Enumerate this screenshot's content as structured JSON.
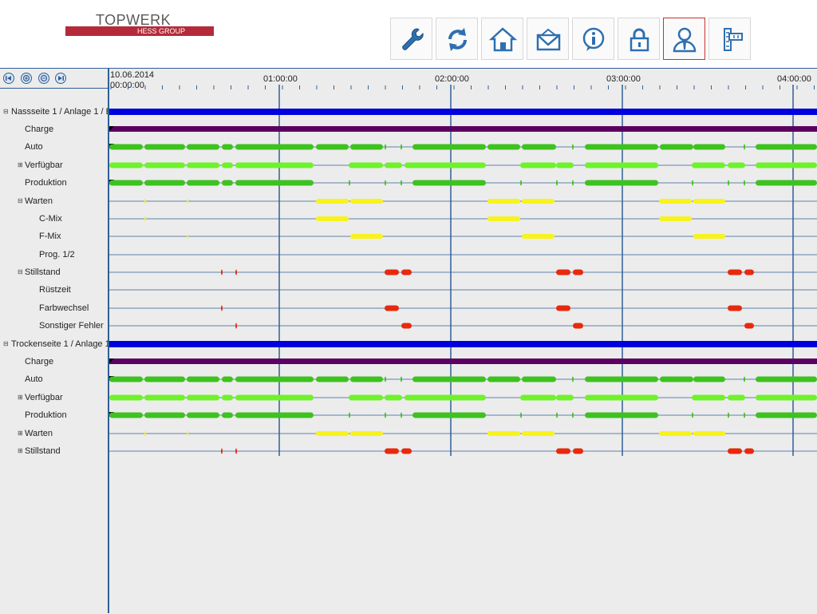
{
  "header": {
    "logo_word": "TOPWERK",
    "logo_group": "HESS GROUP",
    "toolbar": [
      {
        "icon": "wrench-icon"
      },
      {
        "icon": "refresh-icon"
      },
      {
        "icon": "home-icon"
      },
      {
        "icon": "mail-icon"
      },
      {
        "icon": "info-icon"
      },
      {
        "icon": "lock-icon"
      },
      {
        "icon": "user-icon",
        "active": true
      },
      {
        "icon": "ruler-icon"
      }
    ]
  },
  "nav": [
    "first-icon",
    "zoom-in-icon",
    "zoom-out-icon",
    "last-icon"
  ],
  "timeline": {
    "date": "10.06.2014",
    "start": "00:00:00",
    "hours": [
      "01:00:00",
      "02:00:00",
      "03:00:00",
      "04:00:00"
    ]
  },
  "rows": [
    {
      "label": "Nassseite 1 / Anlage 1 / E",
      "indent": 0,
      "expander": "-"
    },
    {
      "label": "Charge",
      "indent": 1
    },
    {
      "label": "Auto",
      "indent": 1
    },
    {
      "label": "Verfügbar",
      "indent": 1,
      "expander": "+"
    },
    {
      "label": "Produktion",
      "indent": 1
    },
    {
      "label": "Warten",
      "indent": 1,
      "expander": "-"
    },
    {
      "label": "C-Mix",
      "indent": 2
    },
    {
      "label": "F-Mix",
      "indent": 2
    },
    {
      "label": "Prog. 1/2",
      "indent": 2
    },
    {
      "label": "Stillstand",
      "indent": 1,
      "expander": "-"
    },
    {
      "label": "Rüstzeit",
      "indent": 2
    },
    {
      "label": "Farbwechsel",
      "indent": 2
    },
    {
      "label": "Sonstiger Fehler",
      "indent": 2
    },
    {
      "label": "Trockenseite 1 / Anlage 1",
      "indent": 0,
      "expander": "-"
    },
    {
      "label": "Charge",
      "indent": 1
    },
    {
      "label": "Auto",
      "indent": 1
    },
    {
      "label": "Verfügbar",
      "indent": 1,
      "expander": "+"
    },
    {
      "label": "Produktion",
      "indent": 1
    },
    {
      "label": "Warten",
      "indent": 1,
      "expander": "+"
    },
    {
      "label": "Stillstand",
      "indent": 1,
      "expander": "+"
    }
  ],
  "colors": {
    "group": "#0000dd",
    "charge": "#5a0060",
    "green": "#3dc21f",
    "lightgreen": "#6ef22a",
    "yellow": "#f7f31c",
    "red": "#e8290c",
    "axis": "#2f5f96",
    "gridline": "#2f5f96"
  }
}
